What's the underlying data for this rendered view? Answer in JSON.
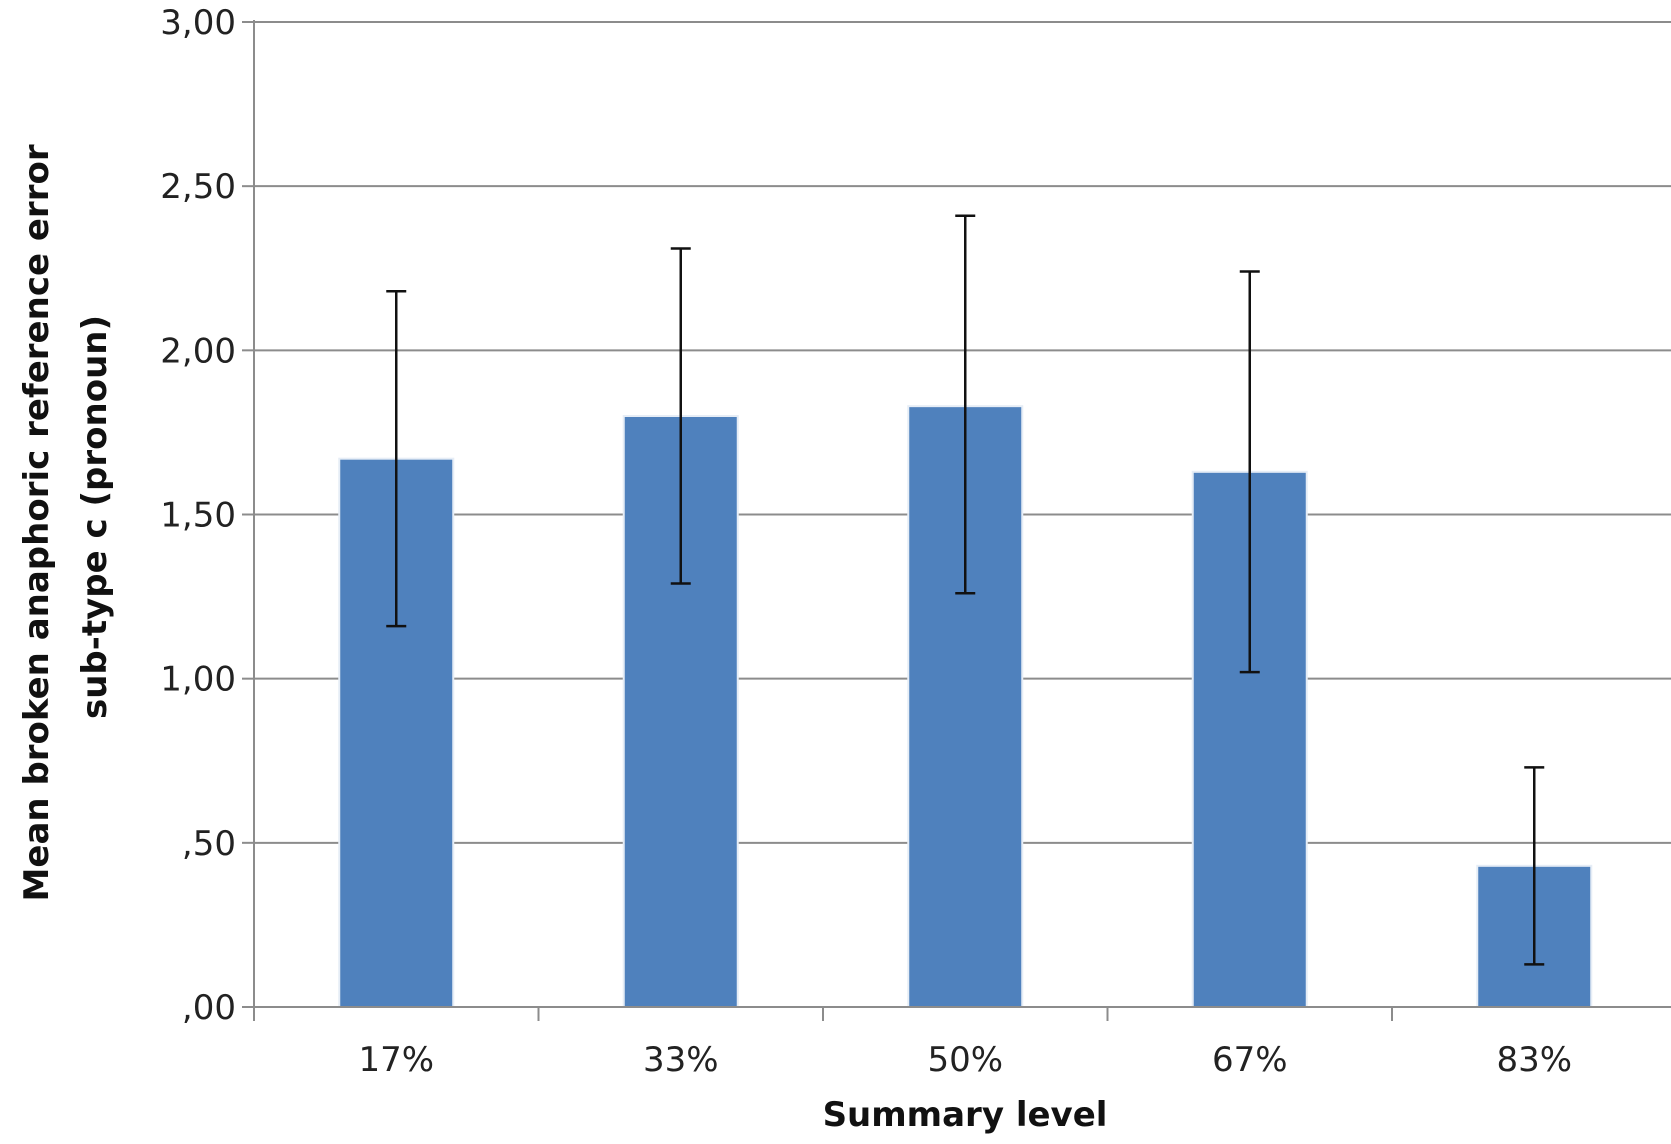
{
  "chart_data": {
    "type": "bar",
    "xlabel": "Summary level",
    "ylabel": [
      "Mean broken anaphoric reference error",
      "sub-type c (pronoun)"
    ],
    "categories": [
      "17%",
      "33%",
      "50%",
      "67%",
      "83%"
    ],
    "values": [
      1.67,
      1.8,
      1.83,
      1.63,
      0.43
    ],
    "error_low": [
      1.16,
      1.29,
      1.26,
      1.02,
      0.13
    ],
    "error_high": [
      2.18,
      2.31,
      2.41,
      2.24,
      0.73
    ],
    "ylim": [
      0,
      3.0
    ],
    "y_ticks": [
      0,
      0.5,
      1.0,
      1.5,
      2.0,
      2.5,
      3.0
    ],
    "y_tick_labels": [
      ",00",
      ",50",
      "1,00",
      "1,50",
      "2,00",
      "2,50",
      "3,00"
    ],
    "grid": true,
    "legend": "none",
    "colors": {
      "bar": "#4f81bd",
      "bar_edge": "#e6edf6",
      "grid": "#8c8c8c",
      "axis": "#8c8c8c",
      "error_bar": "#111111"
    }
  }
}
